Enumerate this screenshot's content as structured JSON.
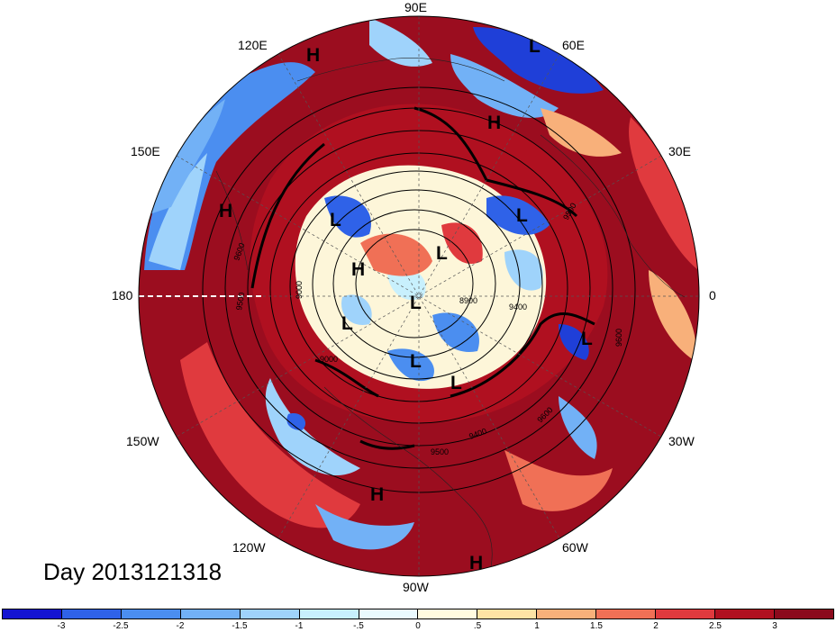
{
  "title": "Day 2013121318",
  "longitude_labels": [
    "90E",
    "60E",
    "30E",
    "0",
    "30W",
    "60W",
    "90W",
    "120W",
    "150W",
    "180",
    "150E",
    "120E"
  ],
  "pressure_centers": [
    "H",
    "L",
    "H",
    "H",
    "L",
    "L",
    "L",
    "L",
    "H",
    "L",
    "L",
    "L",
    "L",
    "H",
    "H"
  ],
  "contour_labels": [
    "9600",
    "9000",
    "9500",
    "8900",
    "9400",
    "9000",
    "9600",
    "9400",
    "9500",
    "9600",
    "9500"
  ],
  "colorbar": {
    "ticks": [
      "-3",
      "-2.5",
      "-2",
      "-1.5",
      "-1",
      "-.5",
      "0",
      ".5",
      "1",
      "1.5",
      "2",
      "2.5",
      "3"
    ],
    "colors": [
      "#1414d2",
      "#2f62e8",
      "#4b8ef0",
      "#72b1f6",
      "#9fd3fb",
      "#c8f0fd",
      "#eafafd",
      "#fffbe0",
      "#fde3a5",
      "#f8b07a",
      "#f07056",
      "#e03a3e",
      "#b01020",
      "#8b0a1c"
    ]
  },
  "field_colors": {
    "deep_red": "#9b0d1f",
    "red": "#d8303a",
    "orange": "#f39575",
    "cream": "#fdf6d9",
    "light_blue": "#bfe7fb",
    "blue": "#4b8ef0",
    "deep_blue": "#1f3fd8"
  }
}
